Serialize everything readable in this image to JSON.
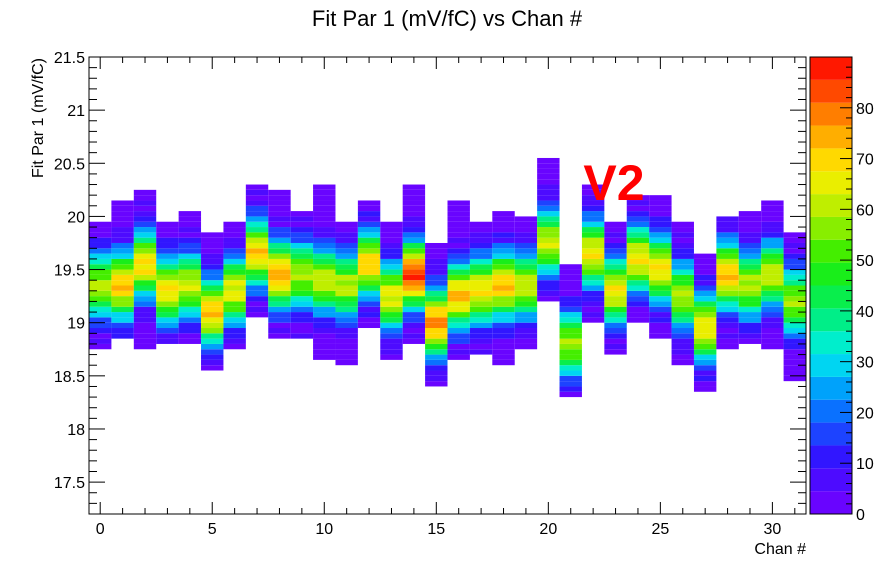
{
  "chart_data": {
    "type": "heatmap",
    "title": "Fit Par 1 (mV/fC) vs Chan #",
    "xlabel": "Chan #",
    "ylabel": "Fit Par 1 (mV/fC)",
    "annotation": "V2",
    "xlim": [
      -0.5,
      31.5
    ],
    "ylim": [
      17.2,
      21.5
    ],
    "x_ticks": [
      "0",
      "5",
      "10",
      "15",
      "20",
      "25",
      "30"
    ],
    "y_ticks": [
      "17.5",
      "18",
      "18.5",
      "19",
      "19.5",
      "20",
      "20.5",
      "21",
      "21.5"
    ],
    "z_range": [
      0,
      90
    ],
    "z_ticks": [
      "0",
      "10",
      "20",
      "30",
      "40",
      "50",
      "60",
      "70",
      "80"
    ],
    "colormap": "rainbow",
    "y_bin_width": 0.05,
    "channels": [
      {
        "ch": 0,
        "center": 19.35,
        "peak": 60,
        "lo": 18.75,
        "hi": 19.95
      },
      {
        "ch": 1,
        "center": 19.35,
        "peak": 72,
        "lo": 18.85,
        "hi": 20.15
      },
      {
        "ch": 2,
        "center": 19.55,
        "peak": 70,
        "lo": 18.75,
        "hi": 20.25
      },
      {
        "ch": 3,
        "center": 19.3,
        "peak": 68,
        "lo": 18.8,
        "hi": 19.95
      },
      {
        "ch": 4,
        "center": 19.35,
        "peak": 62,
        "lo": 18.8,
        "hi": 20.05
      },
      {
        "ch": 5,
        "center": 19.1,
        "peak": 72,
        "lo": 18.55,
        "hi": 19.85
      },
      {
        "ch": 6,
        "center": 19.3,
        "peak": 66,
        "lo": 18.75,
        "hi": 19.95
      },
      {
        "ch": 7,
        "center": 19.65,
        "peak": 70,
        "lo": 19.05,
        "hi": 20.3
      },
      {
        "ch": 8,
        "center": 19.45,
        "peak": 75,
        "lo": 18.85,
        "hi": 20.25
      },
      {
        "ch": 9,
        "center": 19.45,
        "peak": 60,
        "lo": 18.85,
        "hi": 20.05
      },
      {
        "ch": 10,
        "center": 19.4,
        "peak": 62,
        "lo": 18.65,
        "hi": 20.3
      },
      {
        "ch": 11,
        "center": 19.35,
        "peak": 60,
        "lo": 18.6,
        "hi": 19.95
      },
      {
        "ch": 12,
        "center": 19.55,
        "peak": 70,
        "lo": 18.95,
        "hi": 20.15
      },
      {
        "ch": 13,
        "center": 19.25,
        "peak": 66,
        "lo": 18.65,
        "hi": 19.95
      },
      {
        "ch": 14,
        "center": 19.45,
        "peak": 85,
        "lo": 18.8,
        "hi": 20.3
      },
      {
        "ch": 15,
        "center": 19.0,
        "peak": 78,
        "lo": 18.4,
        "hi": 19.75
      },
      {
        "ch": 16,
        "center": 19.25,
        "peak": 72,
        "lo": 18.65,
        "hi": 20.15
      },
      {
        "ch": 17,
        "center": 19.3,
        "peak": 68,
        "lo": 18.7,
        "hi": 19.95
      },
      {
        "ch": 18,
        "center": 19.35,
        "peak": 72,
        "lo": 18.6,
        "hi": 20.05
      },
      {
        "ch": 19,
        "center": 19.35,
        "peak": 62,
        "lo": 18.75,
        "hi": 20.0
      },
      {
        "ch": 20,
        "center": 19.75,
        "peak": 62,
        "lo": 19.2,
        "hi": 20.55
      },
      {
        "ch": 21,
        "center": 18.8,
        "peak": 58,
        "lo": 18.3,
        "hi": 19.55
      },
      {
        "ch": 22,
        "center": 19.65,
        "peak": 66,
        "lo": 19.0,
        "hi": 20.3
      },
      {
        "ch": 23,
        "center": 19.3,
        "peak": 66,
        "lo": 18.7,
        "hi": 19.95
      },
      {
        "ch": 24,
        "center": 19.6,
        "peak": 68,
        "lo": 19.0,
        "hi": 20.2
      },
      {
        "ch": 25,
        "center": 19.5,
        "peak": 68,
        "lo": 18.85,
        "hi": 20.2
      },
      {
        "ch": 26,
        "center": 19.25,
        "peak": 60,
        "lo": 18.6,
        "hi": 19.95
      },
      {
        "ch": 27,
        "center": 18.95,
        "peak": 68,
        "lo": 18.35,
        "hi": 19.65
      },
      {
        "ch": 28,
        "center": 19.45,
        "peak": 72,
        "lo": 18.75,
        "hi": 20.0
      },
      {
        "ch": 29,
        "center": 19.35,
        "peak": 60,
        "lo": 18.8,
        "hi": 20.05
      },
      {
        "ch": 30,
        "center": 19.45,
        "peak": 62,
        "lo": 18.75,
        "hi": 20.15
      },
      {
        "ch": 31,
        "center": 19.2,
        "peak": 58,
        "lo": 18.45,
        "hi": 19.85
      }
    ]
  }
}
